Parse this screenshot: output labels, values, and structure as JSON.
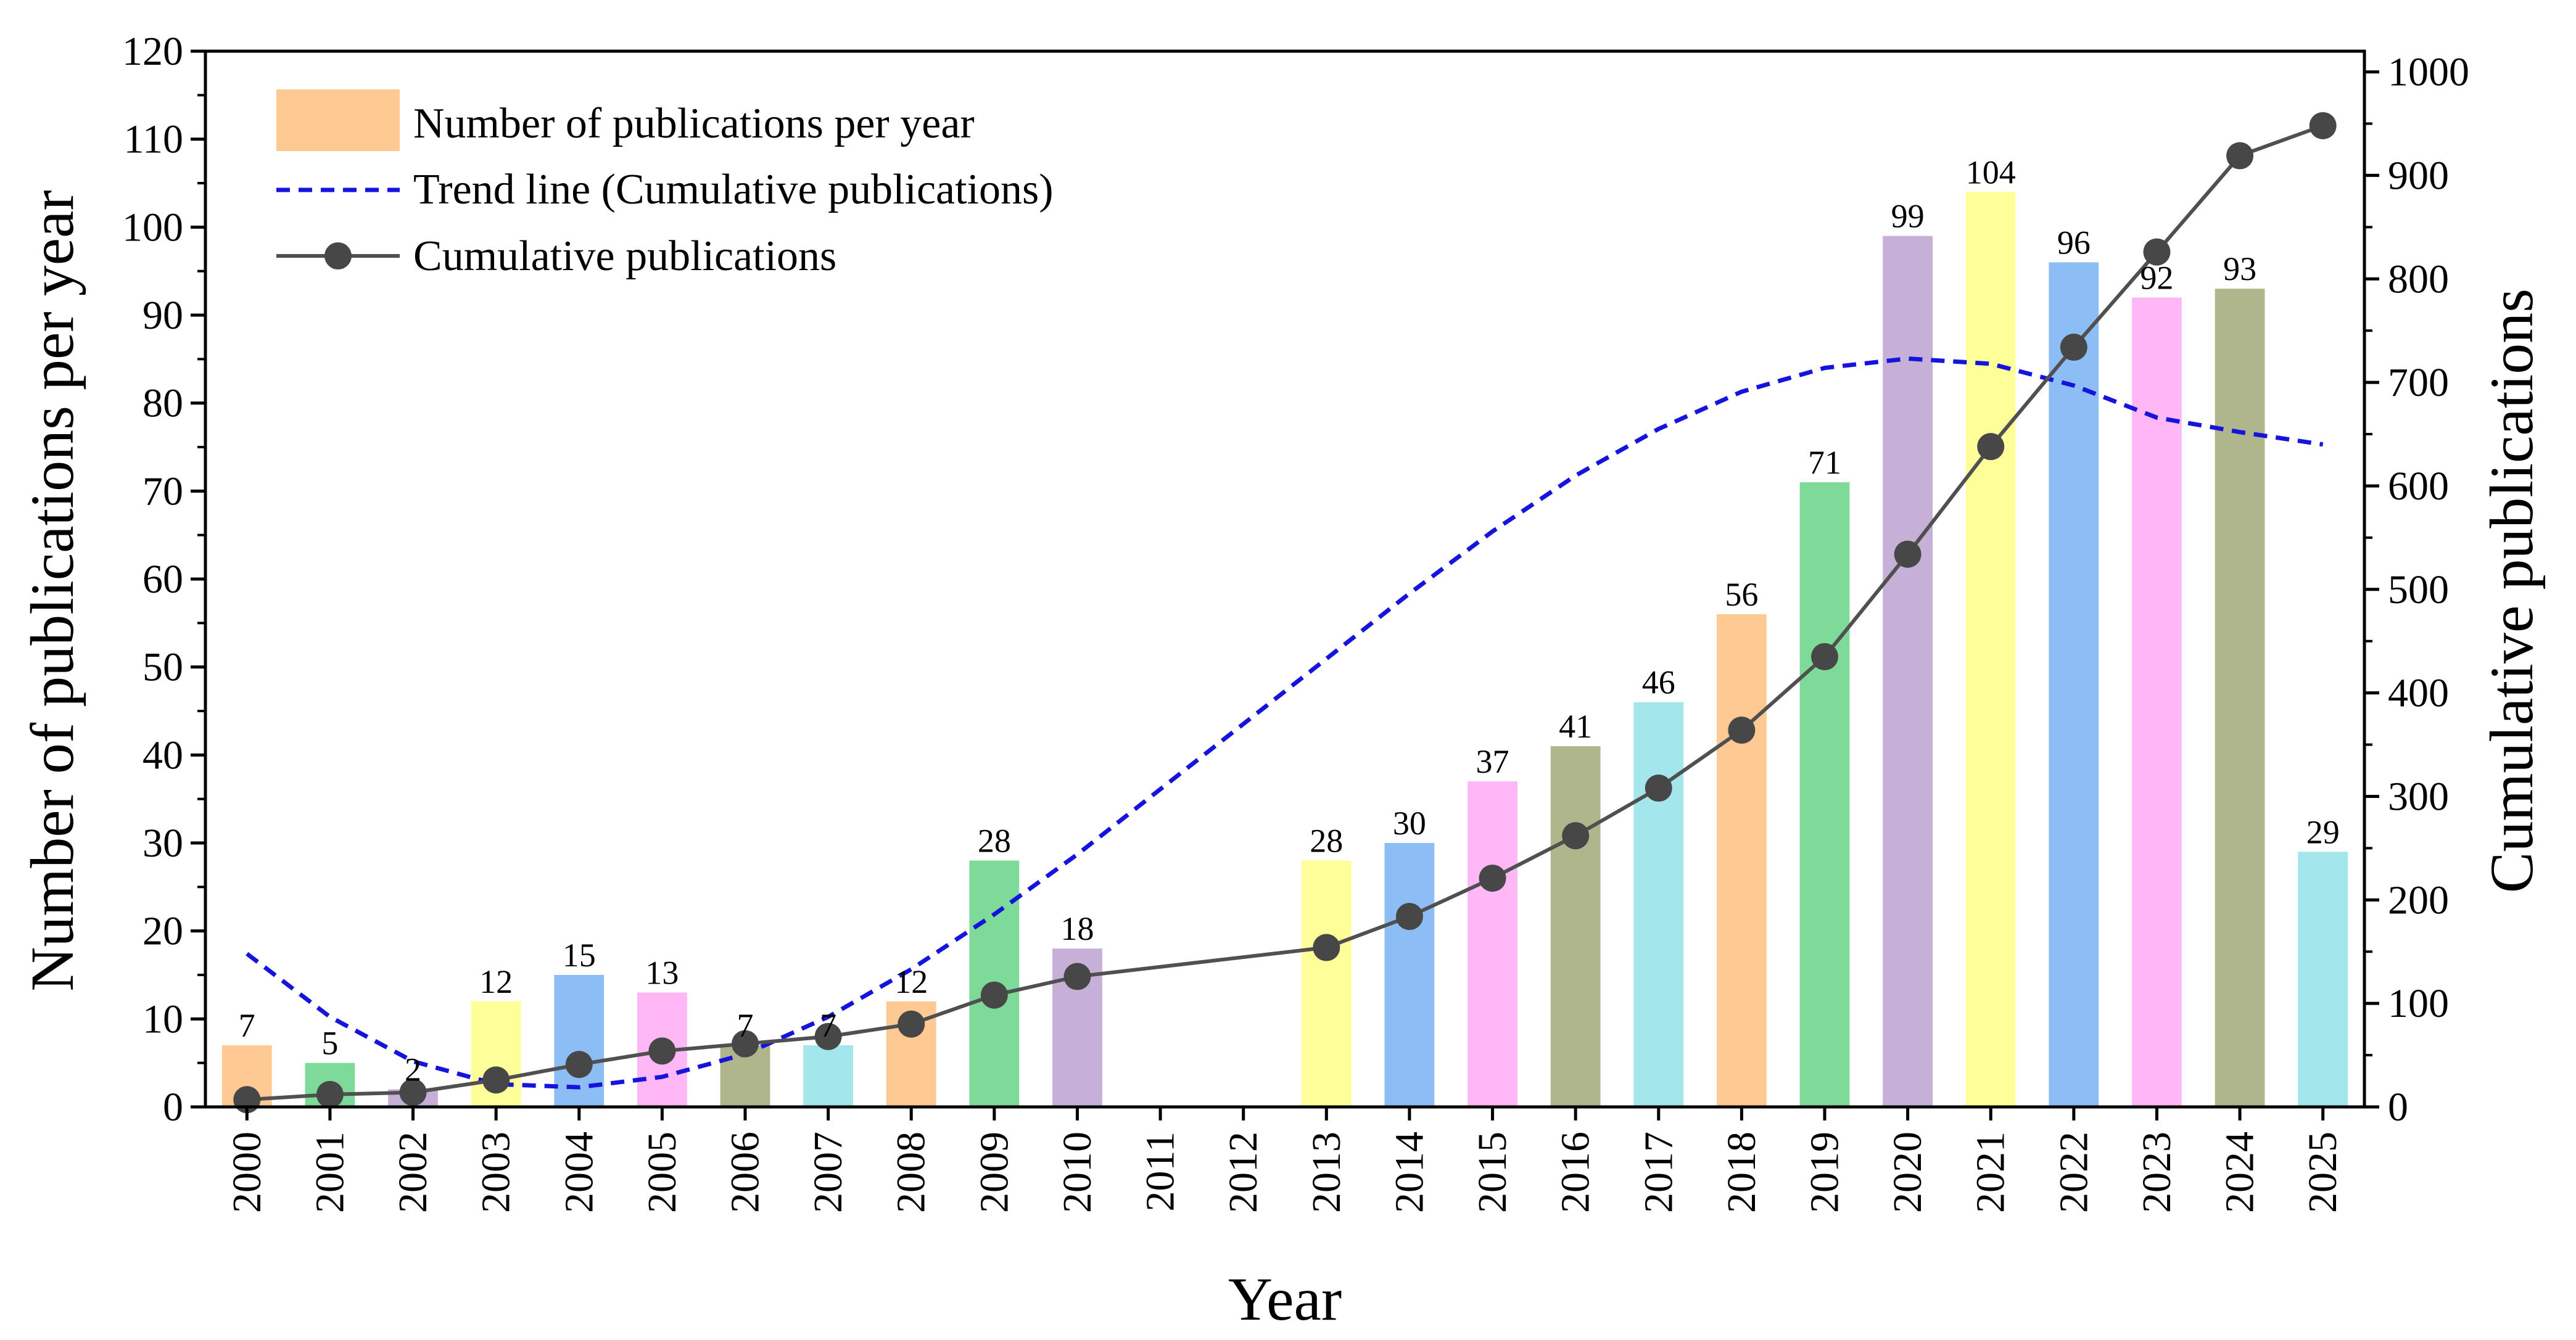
{
  "chart_data": {
    "type": "bar",
    "xlabel": "Year",
    "ylabel": "Number of publications per year",
    "y2label": "Cumulative publications",
    "ylim": [
      0,
      120
    ],
    "y2lim": [
      0,
      1020
    ],
    "yticks": [
      0,
      10,
      20,
      30,
      40,
      50,
      60,
      70,
      80,
      90,
      100,
      110,
      120
    ],
    "y2ticks": [
      0,
      100,
      200,
      300,
      400,
      500,
      600,
      700,
      800,
      900,
      1000
    ],
    "legend_position": "top-left",
    "categories": [
      "2000",
      "2001",
      "2002",
      "2003",
      "2004",
      "2005",
      "2006",
      "2007",
      "2008",
      "2009",
      "2010",
      "2011",
      "2012",
      "2013",
      "2014",
      "2015",
      "2016",
      "2017",
      "2018",
      "2019",
      "2020",
      "2021",
      "2022",
      "2023",
      "2024",
      "2025"
    ],
    "series": [
      {
        "name": "Number of publications per year",
        "type": "bar",
        "axis": "left",
        "values": [
          7,
          5,
          2,
          12,
          15,
          13,
          7,
          7,
          12,
          28,
          18,
          null,
          null,
          28,
          30,
          37,
          41,
          46,
          56,
          71,
          99,
          104,
          96,
          92,
          93,
          29
        ],
        "value_labels": [
          "7",
          "5",
          "2",
          "12",
          "15",
          "13",
          "7",
          "7",
          "12",
          "28",
          "18",
          "",
          "",
          "28",
          "30",
          "37",
          "41",
          "46",
          "56",
          "71",
          "99",
          "104",
          "96",
          "92",
          "93",
          "29"
        ],
        "colors": [
          "#FFC994",
          "#7DDA99",
          "#C7B0D8",
          "#FFFF99",
          "#8CBDF5",
          "#FFB8F5",
          "#B0B68C",
          "#A3E6EC",
          "#FFC994",
          "#7DDA99",
          "#C7B0D8",
          "#FFFF99",
          "#8CBDF5",
          "#FFFF99",
          "#8CBDF5",
          "#FFB8F5",
          "#B0B68C",
          "#A3E6EC",
          "#FFC994",
          "#7DDA99",
          "#C7B0D8",
          "#FFFF99",
          "#8CBDF5",
          "#FFB8F5",
          "#B0B68C",
          "#A3E6EC"
        ]
      },
      {
        "name": "Trend line (Cumulative publications)",
        "type": "line",
        "axis": "right",
        "style": "dashed",
        "color": "#1414DC",
        "x": [
          2000,
          2001,
          2002,
          2003,
          2004,
          2005,
          2006,
          2007,
          2008,
          2009,
          2010,
          2013,
          2014,
          2015,
          2016,
          2017,
          2018,
          2019,
          2020,
          2021,
          2022,
          2023,
          2024,
          2025
        ],
        "values": [
          148,
          87,
          44,
          22,
          19,
          29,
          51,
          87,
          133,
          186,
          244,
          433,
          496,
          556,
          610,
          655,
          691,
          714,
          723,
          718,
          697,
          666,
          652,
          640
        ]
      },
      {
        "name": "Cumulative publications",
        "type": "line",
        "axis": "right",
        "marker": "circle",
        "color": "#505050",
        "marker_color": "#474747",
        "x": [
          2000,
          2001,
          2002,
          2003,
          2004,
          2005,
          2006,
          2007,
          2008,
          2009,
          2010,
          2013,
          2014,
          2015,
          2016,
          2017,
          2018,
          2019,
          2020,
          2021,
          2022,
          2023,
          2024,
          2025
        ],
        "values": [
          7,
          12,
          14,
          26,
          41,
          54,
          61,
          68,
          80,
          108,
          126,
          154,
          184,
          221,
          262,
          308,
          364,
          435,
          534,
          638,
          734,
          826,
          919,
          948
        ]
      }
    ]
  }
}
